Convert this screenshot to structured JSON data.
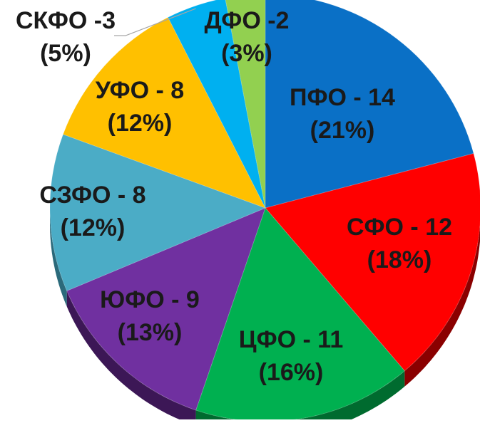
{
  "chart_data": {
    "type": "pie",
    "title": "",
    "slices": [
      {
        "label": "ПФО - 14",
        "percent_label": "(21%)",
        "value": 14,
        "color": "#0a70c6",
        "side": "#0a3f73"
      },
      {
        "label": "СФО - 12",
        "percent_label": "(18%)",
        "value": 12,
        "color": "#ff0000",
        "side": "#8a0000"
      },
      {
        "label": "ЦФО - 11",
        "percent_label": "(16%)",
        "value": 11,
        "color": "#00b050",
        "side": "#006b2f"
      },
      {
        "label": "ЮФО - 9",
        "percent_label": "(13%)",
        "value": 9,
        "color": "#7030a0",
        "side": "#3c1756"
      },
      {
        "label": "СЗФО - 8",
        "percent_label": "(12%)",
        "value": 8,
        "color": "#4bacc6",
        "side": "#2b6a7b"
      },
      {
        "label": "УФО - 8",
        "percent_label": "(12%)",
        "value": 8,
        "color": "#ffc000",
        "side": "#8a6800"
      },
      {
        "label": "СКФО -3",
        "percent_label": "(5%)",
        "value": 3,
        "color": "#00b0f0",
        "side": "#006a90"
      },
      {
        "label": "ДФО -2",
        "percent_label": "(3%)",
        "value": 2,
        "color": "#92d050",
        "side": "#577d30"
      }
    ]
  }
}
